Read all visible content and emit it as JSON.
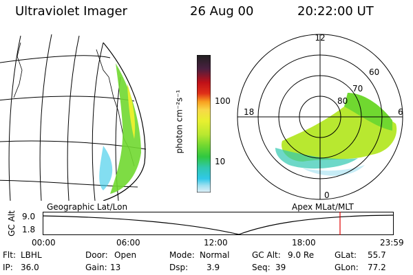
{
  "header": {
    "instrument": "Ultraviolet Imager",
    "date": "26 Aug 00",
    "time": "20:22:00 UT"
  },
  "left_panel": {
    "caption": "Geographic Lat/Lon"
  },
  "right_panel": {
    "caption": "Apex MLat/MLT",
    "mlt_labels": [
      "12",
      "18",
      "6",
      "0"
    ],
    "mlat_labels": [
      "60",
      "70",
      "80"
    ]
  },
  "colorbar": {
    "unit_label": "photon cm⁻²s⁻¹",
    "tick_labels": [
      "100",
      "10"
    ],
    "colors": [
      "#202020",
      "#4a2040",
      "#7a1028",
      "#c01018",
      "#e03018",
      "#f06020",
      "#f8a020",
      "#f8d848",
      "#e8f030",
      "#b8e830",
      "#70d830",
      "#30c840",
      "#30c8b0",
      "#30c8e8",
      "#a0e0f0",
      "#e0f0f8"
    ]
  },
  "timeline": {
    "axis_label": "GC Alt",
    "y_labels": [
      "9.0",
      "1.8"
    ],
    "x_labels": [
      "00:00",
      "06:00",
      "12:00",
      "18:00",
      "23:59"
    ],
    "current_marker_time": "20:22",
    "marker_color": "#e00000"
  },
  "status": {
    "row1": [
      {
        "key": "Flt:",
        "value": "LBHL"
      },
      {
        "key": "Door:",
        "value": "Open"
      },
      {
        "key": "Mode:",
        "value": "Normal"
      },
      {
        "key": "GC Alt:",
        "value": "9.0 Re"
      },
      {
        "key": "GLat:",
        "value": "55.7"
      }
    ],
    "row2": [
      {
        "key": "IP:",
        "value": "36.0"
      },
      {
        "key": "Gain:",
        "value": "13"
      },
      {
        "key": "Dsp:",
        "value": "3.9"
      },
      {
        "key": "Seq:",
        "value": "39"
      },
      {
        "key": "GLon:",
        "value": "77.2"
      }
    ]
  }
}
